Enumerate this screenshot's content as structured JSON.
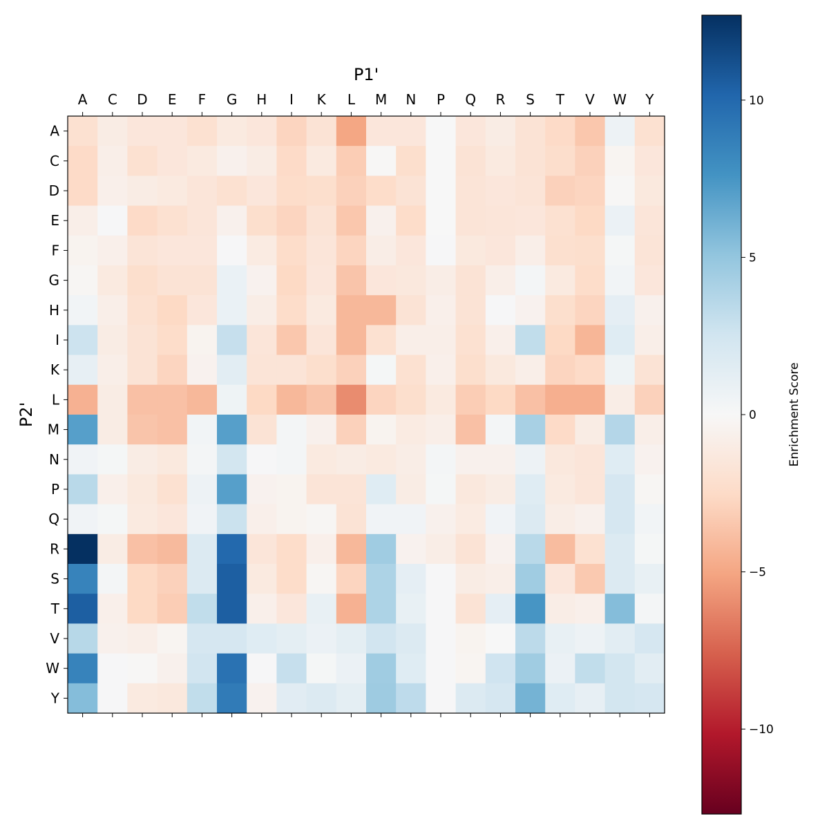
{
  "chart_data": {
    "type": "heatmap",
    "xlabel": "P1'",
    "ylabel": "P2'",
    "x_categories": [
      "A",
      "C",
      "D",
      "E",
      "F",
      "G",
      "H",
      "I",
      "K",
      "L",
      "M",
      "N",
      "P",
      "Q",
      "R",
      "S",
      "T",
      "V",
      "W",
      "Y"
    ],
    "y_categories": [
      "A",
      "C",
      "D",
      "E",
      "F",
      "G",
      "H",
      "I",
      "K",
      "L",
      "M",
      "N",
      "P",
      "Q",
      "R",
      "S",
      "T",
      "V",
      "W",
      "Y"
    ],
    "colormap": "RdBu",
    "vmin": -12.7,
    "vmax": 12.7,
    "colorbar": {
      "label": "Enrichment Score",
      "ticks": [
        10,
        5,
        0,
        -5,
        -10
      ],
      "tick_labels": [
        "10",
        "5",
        "0",
        "−5",
        "−10"
      ]
    },
    "values": [
      [
        -2,
        -1,
        -1.5,
        -1.5,
        -2,
        -1.2,
        -1.5,
        -2.8,
        -1.8,
        -5,
        -1.5,
        -1.5,
        0,
        -1.5,
        -1,
        -1.8,
        -2.5,
        -3.5,
        0.7,
        -2
      ],
      [
        -2.5,
        -0.8,
        -2,
        -1.5,
        -1.2,
        -0.6,
        -1,
        -2.5,
        -1.2,
        -3.2,
        -0.1,
        -2.2,
        0,
        -1.8,
        -1.2,
        -1.8,
        -2.3,
        -3,
        -0.3,
        -1.5
      ],
      [
        -2.5,
        -0.7,
        -1,
        -1.2,
        -1.6,
        -2,
        -1.5,
        -2.4,
        -2.2,
        -3,
        -2.4,
        -1.8,
        0,
        -1.7,
        -1.5,
        -1.7,
        -3,
        -2.8,
        -0.1,
        -1.3
      ],
      [
        -0.8,
        0.1,
        -2.5,
        -2,
        -1.6,
        -0.6,
        -2.2,
        -2.8,
        -1.8,
        -3.5,
        -0.6,
        -2.4,
        0,
        -1.7,
        -1.6,
        -1.5,
        -2,
        -2.6,
        0.8,
        -1.6
      ],
      [
        -0.4,
        -0.7,
        -1.7,
        -1.5,
        -1.5,
        0.1,
        -1.1,
        -2.4,
        -1.6,
        -2.8,
        -0.9,
        -1.5,
        0.1,
        -1.3,
        -1.5,
        -0.8,
        -2.1,
        -2.2,
        0.2,
        -1.7
      ],
      [
        -0.2,
        -1.2,
        -2.2,
        -1.8,
        -1.8,
        0.9,
        -0.5,
        -2.6,
        -1.5,
        -3.6,
        -1.5,
        -1.4,
        -0.9,
        -1.8,
        -0.8,
        0.3,
        -1.2,
        -2.4,
        0.4,
        -1.5
      ],
      [
        0.4,
        -0.8,
        -2,
        -2.6,
        -1.5,
        0.9,
        -0.9,
        -2.4,
        -1.2,
        -4.2,
        -4.2,
        -1.8,
        -0.7,
        -1.8,
        0.1,
        -0.5,
        -2.2,
        -2.8,
        1.2,
        -0.6
      ],
      [
        2.7,
        -1,
        -1.8,
        -2.4,
        -0.4,
        3,
        -1.6,
        -3.5,
        -1.6,
        -4.2,
        -2,
        -0.8,
        -0.8,
        -2,
        -0.7,
        3.2,
        -2.6,
        -4.3,
        1.6,
        -0.8
      ],
      [
        1.1,
        -0.8,
        -1.8,
        -2.8,
        -0.5,
        1.4,
        -1.7,
        -1.7,
        -2.2,
        -3,
        0.2,
        -2,
        -0.7,
        -2.2,
        -1.3,
        -0.8,
        -2.8,
        -2.5,
        0.6,
        -1.8
      ],
      [
        -4.5,
        -1,
        -3.8,
        -3.8,
        -4.2,
        0.6,
        -2.6,
        -4.2,
        -3.6,
        -6,
        -2.8,
        -2.2,
        -1.2,
        -3.2,
        -2.6,
        -3.8,
        -4.6,
        -4.6,
        -0.9,
        -3
      ],
      [
        7,
        -1,
        -3.6,
        -3.8,
        0.4,
        7,
        -1.8,
        0.3,
        -0.6,
        -3,
        -0.4,
        -1.1,
        -0.8,
        -3.8,
        0.3,
        4.2,
        -2.5,
        -1,
        3.7,
        -0.8
      ],
      [
        0.5,
        0.2,
        -1,
        -1.3,
        0.3,
        2.4,
        0.1,
        0.3,
        -1.2,
        -1,
        -1.2,
        -0.9,
        0.3,
        -0.6,
        -0.6,
        0.7,
        -1.4,
        -1.6,
        1.6,
        -0.5
      ],
      [
        3.5,
        -0.7,
        -1.3,
        -2,
        0.7,
        7,
        -0.5,
        -0.4,
        -1.7,
        -1.7,
        1.6,
        -1,
        0.2,
        -1.4,
        -1,
        1.6,
        -1.2,
        -1.6,
        2.2,
        -0.2
      ],
      [
        0.5,
        0.2,
        -1.2,
        -1.5,
        0.5,
        2.8,
        -0.7,
        -0.4,
        -0.2,
        -1.8,
        0.5,
        0.5,
        -0.6,
        -1.1,
        0.5,
        1.8,
        -0.9,
        -0.6,
        2.2,
        0.4
      ],
      [
        12.7,
        -1,
        -3.8,
        -4.1,
        1.8,
        10,
        -1.6,
        -2.4,
        -0.7,
        -4.2,
        4.5,
        -0.5,
        -0.9,
        -1.8,
        -0.5,
        3.5,
        -4,
        -2,
        1.8,
        0.2
      ],
      [
        8.5,
        0.3,
        -2.6,
        -3,
        1.8,
        10.5,
        -1.2,
        -2.4,
        -0.2,
        -2.8,
        4,
        1.2,
        0.1,
        -1,
        -0.8,
        4.5,
        -1.5,
        -3.4,
        1.8,
        1
      ],
      [
        10.5,
        -0.7,
        -2.6,
        -3.2,
        3.2,
        10.5,
        -0.7,
        -1.5,
        1,
        -4.5,
        4,
        1,
        0.1,
        -1.8,
        1.2,
        7.5,
        -0.9,
        -0.7,
        5.5,
        0.3
      ],
      [
        3.6,
        -0.6,
        -0.8,
        -0.3,
        2.2,
        2.2,
        1.6,
        1.3,
        0.8,
        1.3,
        2.5,
        1.8,
        0.1,
        -0.4,
        0,
        3.4,
        1,
        0.7,
        1.4,
        2.2
      ],
      [
        8.5,
        0.1,
        -0.1,
        -0.6,
        2.5,
        9.5,
        0.1,
        3,
        0.2,
        0.8,
        4.5,
        1.6,
        0.1,
        -0.3,
        2.6,
        4.5,
        0.8,
        3.2,
        2.4,
        1.4
      ],
      [
        5.5,
        0.1,
        -1.2,
        -1.4,
        3.2,
        9,
        -0.5,
        1.5,
        1.8,
        1.3,
        4.6,
        3.3,
        0.1,
        1.8,
        2.2,
        6,
        1.6,
        1.1,
        2.4,
        2.2
      ]
    ]
  }
}
